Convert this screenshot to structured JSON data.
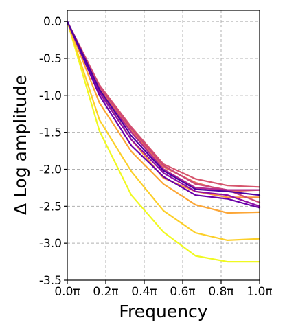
{
  "chart_data": {
    "type": "line",
    "xlabel": "Frequency",
    "ylabel": "Δ Log amplitude",
    "xlim": [
      0,
      1
    ],
    "ylim": [
      -3.5,
      0.15
    ],
    "x_ticks": [
      0,
      0.2,
      0.4,
      0.6,
      0.8,
      1.0
    ],
    "x_tick_labels": [
      "0.0π",
      "0.2π",
      "0.4π",
      "0.6π",
      "0.8π",
      "1.0π"
    ],
    "y_ticks": [
      0.0,
      -0.5,
      -1.0,
      -1.5,
      -2.0,
      -2.5,
      -3.0,
      -3.5
    ],
    "y_tick_labels": [
      "0.0",
      "-0.5",
      "-1.0",
      "-1.5",
      "-2.0",
      "-2.5",
      "-3.0",
      "-3.5"
    ],
    "grid": true,
    "legend": "none",
    "x": [
      0,
      0.1667,
      0.3333,
      0.5,
      0.6667,
      0.8333,
      1.0
    ],
    "series": [
      {
        "color": "#f0f921",
        "values": [
          0,
          -1.48,
          -2.35,
          -2.85,
          -3.17,
          -3.25,
          -3.25
        ]
      },
      {
        "color": "#fccf29",
        "values": [
          0,
          -1.33,
          -2.03,
          -2.56,
          -2.86,
          -2.96,
          -2.94
        ]
      },
      {
        "color": "#fca636",
        "values": [
          0,
          -1.1,
          -1.76,
          -2.2,
          -2.48,
          -2.59,
          -2.58
        ]
      },
      {
        "color": "#f89540",
        "values": [
          0,
          -0.95,
          -1.6,
          -2.12,
          -2.3,
          -2.38,
          -2.38
        ]
      },
      {
        "color": "#e76f5a",
        "values": [
          0,
          -0.9,
          -1.48,
          -1.97,
          -2.18,
          -2.3,
          -2.28
        ]
      },
      {
        "color": "#d6556d",
        "values": [
          0,
          -0.86,
          -1.43,
          -1.93,
          -2.13,
          -2.22,
          -2.24
        ]
      },
      {
        "color": "#cc4778",
        "values": [
          0,
          -0.88,
          -1.45,
          -1.95,
          -2.2,
          -2.28,
          -2.45
        ]
      },
      {
        "color": "#b12a90",
        "values": [
          0,
          -0.93,
          -1.5,
          -2.0,
          -2.25,
          -2.28,
          -2.28
        ]
      },
      {
        "color": "#8f0da4",
        "values": [
          0,
          -0.96,
          -1.6,
          -2.05,
          -2.3,
          -2.35,
          -2.5
        ]
      },
      {
        "color": "#6a00a8",
        "values": [
          0,
          -1.0,
          -1.68,
          -2.1,
          -2.35,
          -2.4,
          -2.52
        ]
      },
      {
        "color": "#4c02a1",
        "values": [
          0,
          -0.92,
          -1.55,
          -2.02,
          -2.27,
          -2.3,
          -2.35
        ]
      }
    ]
  }
}
